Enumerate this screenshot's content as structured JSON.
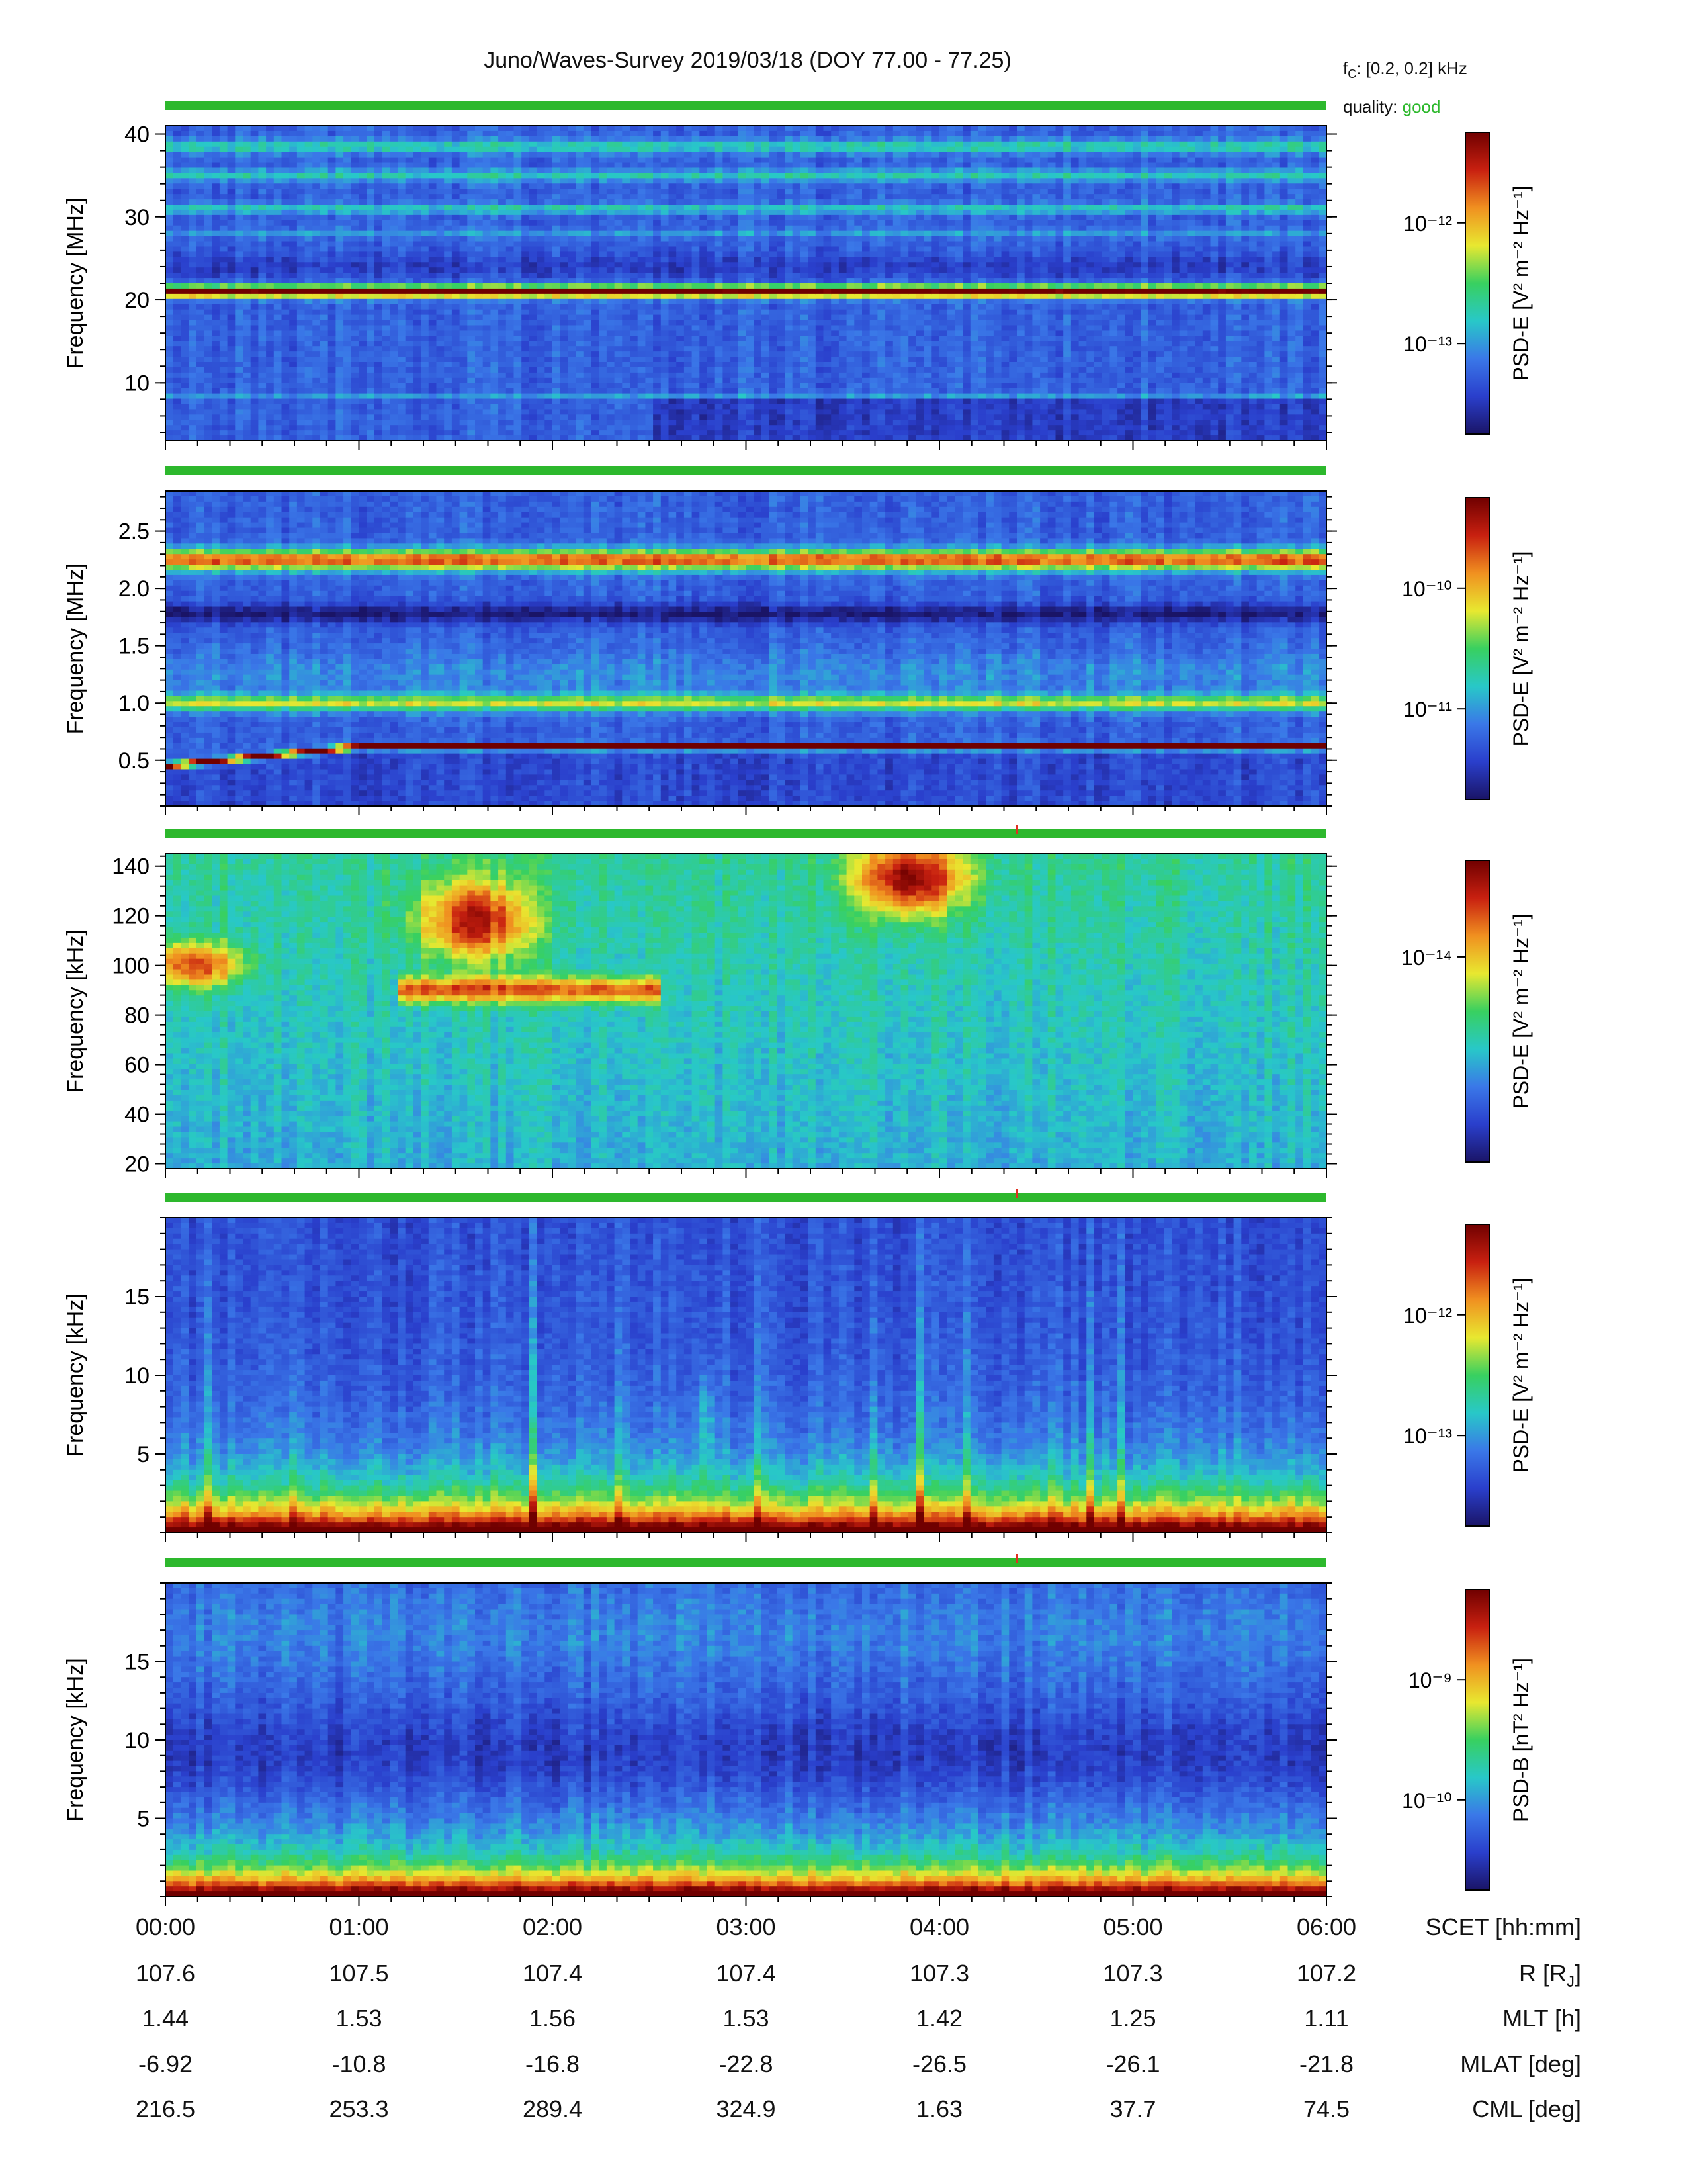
{
  "title": "Juno/Waves-Survey  2019/03/18 (DOY 77.00 - 77.25)",
  "meta": {
    "fc_label": "f",
    "fc_sub": "C",
    "fc_value": ": [0.2, 0.2] kHz",
    "quality_label": "quality: ",
    "quality_value": "good",
    "quality_color": "#2db82d"
  },
  "chart_data": [
    {
      "type": "heatmap",
      "ylabel": "Frequency [MHz]",
      "ylim": [
        3,
        41
      ],
      "yticks": [
        10,
        20,
        30,
        40
      ],
      "colorbar_label": "PSD-E [V² m⁻² Hz⁻¹]",
      "colorbar_ticks": [
        "10⁻¹²",
        "10⁻¹³"
      ],
      "features": "strong narrowband emission at ~21 MHz; weaker bands near 38, 35, 31, 28 MHz"
    },
    {
      "type": "heatmap",
      "ylabel": "Frequency [MHz]",
      "ylim": [
        0.1,
        2.85
      ],
      "yticks": [
        0.5,
        1.0,
        1.5,
        2.0,
        2.5
      ],
      "colorbar_label": "PSD-E [V² m⁻² Hz⁻¹]",
      "colorbar_ticks": [
        "10⁻¹⁰",
        "10⁻¹¹"
      ],
      "features": "bright band at ~2.25 MHz; band ~1.0 MHz; intense line rising 0.45 to 0.62 MHz"
    },
    {
      "type": "heatmap",
      "ylabel": "Frequency [kHz]",
      "ylim": [
        18,
        145
      ],
      "yticks": [
        20,
        40,
        60,
        80,
        100,
        120,
        140
      ],
      "colorbar_label": "PSD-E [V² m⁻² Hz⁻¹]",
      "colorbar_ticks": [
        "10⁻¹⁴"
      ],
      "features": "emission ~100 kHz 00:00-00:25; patch 85-135 kHz 01:10-02:35; patch 110-145 kHz 03:35-04:10"
    },
    {
      "type": "heatmap",
      "ylabel": "Frequency [kHz]",
      "ylim": [
        0,
        20
      ],
      "yticks": [
        5,
        10,
        15
      ],
      "colorbar_label": "PSD-E [V² m⁻² Hz⁻¹]",
      "colorbar_ticks": [
        "10⁻¹²",
        "10⁻¹³"
      ],
      "features": "intense low-frequency emission below 3 kHz; periodic vertical bursts"
    },
    {
      "type": "heatmap",
      "ylabel": "Frequency [kHz]",
      "ylim": [
        0,
        20
      ],
      "yticks": [
        5,
        10,
        15
      ],
      "colorbar_label": "PSD-B [nT² Hz⁻¹]",
      "colorbar_ticks": [
        "10⁻⁹",
        "10⁻¹⁰"
      ],
      "features": "intense emission below 2 kHz; minimum near 9 kHz"
    }
  ],
  "x_axis": {
    "ticks": [
      "00:00",
      "01:00",
      "02:00",
      "03:00",
      "04:00",
      "05:00",
      "06:00"
    ],
    "label": "SCET [hh:mm]"
  },
  "ephemeris": [
    {
      "label": "R [R",
      "label_sub": "J",
      "label_end": "]",
      "values": [
        "107.6",
        "107.5",
        "107.4",
        "107.4",
        "107.3",
        "107.3",
        "107.2"
      ]
    },
    {
      "label": "MLT [h]",
      "values": [
        "1.44",
        "1.53",
        "1.56",
        "1.53",
        "1.42",
        "1.25",
        "1.11"
      ]
    },
    {
      "label": "MLAT [deg]",
      "values": [
        "-6.92",
        "-10.8",
        "-16.8",
        "-22.8",
        "-26.5",
        "-26.1",
        "-21.8"
      ]
    },
    {
      "label": "CML [deg]",
      "values": [
        "216.5",
        "253.3",
        "289.4",
        "324.9",
        "1.63",
        "37.7",
        "74.5"
      ]
    }
  ],
  "colors": {
    "quality_bar": "#2db82d",
    "marker": "#e03020",
    "cmap": [
      "#1a1466",
      "#2a3fcc",
      "#3a78e8",
      "#28c8c8",
      "#38d060",
      "#e8e830",
      "#f09020",
      "#c82010",
      "#700000"
    ]
  }
}
